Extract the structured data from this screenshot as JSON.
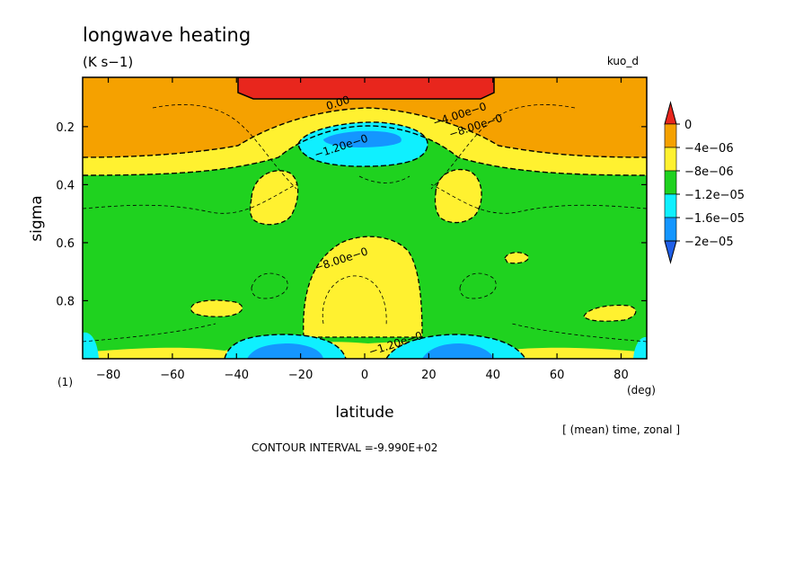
{
  "header": {
    "title": "longwave heating",
    "units": "(K s−1)",
    "run": "kuo_d"
  },
  "footer": {
    "panel": "(1)",
    "xunits": "(deg)",
    "averaging": "[ (mean) time, zonal ]",
    "contour_interval": "CONTOUR INTERVAL =-9.990E+02"
  },
  "colors": {
    "red": "#e8261d",
    "orange": "#f5a100",
    "yellow": "#fff130",
    "green": "#1fd21f",
    "cyan": "#0ff0ff",
    "blue": "#1496ff",
    "darkblue": "#1f5fe8"
  },
  "chart_data": {
    "type": "contour",
    "title": "longwave heating",
    "units": "(K s−1)",
    "xlabel": "latitude",
    "ylabel": "sigma",
    "xlim": [
      -88,
      88
    ],
    "ylim": [
      1.0,
      0.03
    ],
    "xticks": [
      -80,
      -60,
      -40,
      -20,
      0,
      20,
      40,
      60,
      80
    ],
    "xtick_labels": [
      "−80",
      "−60",
      "−40",
      "−20",
      "0",
      "20",
      "40",
      "60",
      "80"
    ],
    "yticks": [
      0.2,
      0.4,
      0.6,
      0.8
    ],
    "ytick_labels": [
      "0.2",
      "0.4",
      "0.6",
      "0.8"
    ],
    "colorbar": {
      "levels": [
        0,
        -4e-06,
        -8e-06,
        -1.2e-05,
        -1.6e-05,
        -2e-05
      ],
      "labels": [
        "0",
        "−4e−06",
        "−8e−06",
        "−1.2e−05",
        "−1.6e−05",
        "−2e−05"
      ],
      "colors": [
        "#e8261d",
        "#f5a100",
        "#fff130",
        "#1fd21f",
        "#0ff0ff",
        "#1496ff",
        "#1f5fe8"
      ]
    },
    "contour_labels": [
      {
        "text": "0.00",
        "lat": -8,
        "sigma": 0.13
      },
      {
        "text": "−4.00e−0",
        "lat": 30,
        "sigma": 0.17
      },
      {
        "text": "−8.00e−0",
        "lat": 35,
        "sigma": 0.21
      },
      {
        "text": "−1.20e−0",
        "lat": -7,
        "sigma": 0.28
      },
      {
        "text": "−8.00e−0",
        "lat": -7,
        "sigma": 0.67
      },
      {
        "text": "−1.20e−0",
        "lat": 10,
        "sigma": 0.96
      }
    ]
  }
}
